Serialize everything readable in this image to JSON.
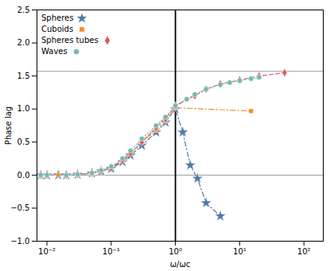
{
  "chart_data": {
    "type": "line",
    "xlabel": "ω/ωc",
    "ylabel": "Phase lag",
    "log": "x",
    "xlim": [
      0.007,
      200
    ],
    "ylim": [
      -1.0,
      2.5
    ],
    "xticks": [
      {
        "value": 0.01,
        "label": "10⁻²"
      },
      {
        "value": 0.1,
        "label": "10⁻¹"
      },
      {
        "value": 1,
        "label": "10⁰"
      },
      {
        "value": 10,
        "label": "10¹"
      },
      {
        "value": 100,
        "label": "10²"
      }
    ],
    "yticks": [
      {
        "value": -1,
        "label": "−1.0"
      },
      {
        "value": -0.5,
        "label": "−0.5"
      },
      {
        "value": 0,
        "label": "0.0"
      },
      0.5,
      {
        "value": 1,
        "label": "1.0"
      },
      1.5,
      {
        "value": 2,
        "label": "2.0"
      },
      2.5
    ],
    "grid": false,
    "legend": "upper left",
    "hlines": [
      0.0,
      1.5707963
    ],
    "vlines": [
      1.0
    ],
    "series": [
      {
        "name": "Spheres",
        "marker": "star",
        "line_style": "dashdot",
        "x": [
          0.008,
          0.01,
          0.015,
          0.02,
          0.03,
          0.05,
          0.07,
          0.1,
          0.15,
          0.2,
          0.3,
          0.5,
          0.7,
          1.0,
          1.3,
          1.7,
          2.2,
          3.0,
          5.0
        ],
        "values": [
          0.0,
          0.0,
          0.0,
          0.0,
          0.01,
          0.03,
          0.06,
          0.1,
          0.2,
          0.3,
          0.45,
          0.65,
          0.8,
          1.0,
          0.65,
          0.15,
          -0.05,
          -0.42,
          -0.62
        ]
      },
      {
        "name": "Cuboids",
        "marker": "square",
        "line_style": "dashdot",
        "x": [
          0.008,
          0.01,
          0.015,
          0.02,
          0.03,
          0.05,
          0.07,
          0.1,
          0.15,
          0.2,
          0.3,
          0.5,
          0.7,
          1.0,
          15.0
        ],
        "values": [
          0.0,
          0.0,
          0.0,
          0.0,
          0.01,
          0.03,
          0.07,
          0.12,
          0.22,
          0.33,
          0.5,
          0.68,
          0.82,
          1.02,
          0.97
        ]
      },
      {
        "name": "Spheres tubes",
        "marker": "diamond",
        "line_style": "dashed",
        "x": [
          0.008,
          0.01,
          0.02,
          0.03,
          0.05,
          0.07,
          0.1,
          0.15,
          0.2,
          0.3,
          0.5,
          0.7,
          1.0,
          2.0,
          3.0,
          5.0,
          10.0,
          20.0,
          50.0
        ],
        "values": [
          0.0,
          0.0,
          0.0,
          0.01,
          0.03,
          0.06,
          0.11,
          0.22,
          0.33,
          0.5,
          0.72,
          0.85,
          1.05,
          1.2,
          1.3,
          1.38,
          1.44,
          1.5,
          1.55
        ]
      },
      {
        "name": "Waves",
        "marker": "circle",
        "line_style": "dotted",
        "x": [
          0.008,
          0.01,
          0.02,
          0.03,
          0.05,
          0.07,
          0.1,
          0.15,
          0.2,
          0.3,
          0.5,
          0.7,
          1.0,
          1.5,
          2.0,
          3.0,
          5.0,
          7.0,
          10.0,
          15.0,
          20.0
        ],
        "values": [
          0.0,
          0.0,
          0.0,
          0.01,
          0.03,
          0.07,
          0.13,
          0.25,
          0.37,
          0.55,
          0.75,
          0.88,
          1.05,
          1.15,
          1.22,
          1.3,
          1.37,
          1.4,
          1.43,
          1.46,
          1.48
        ]
      }
    ]
  }
}
